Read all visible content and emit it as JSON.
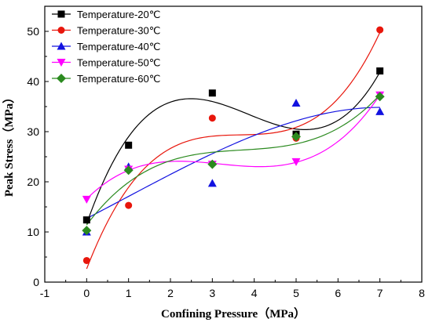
{
  "chart_data": {
    "type": "scatter",
    "title": "",
    "xlabel": "Confining Pressure（MPa）",
    "ylabel": "Peak Stress（MPa）",
    "xlim": [
      -1,
      8
    ],
    "ylim": [
      0,
      55
    ],
    "xticks": [
      -1,
      0,
      1,
      2,
      3,
      4,
      5,
      6,
      7,
      8
    ],
    "yticks": [
      0,
      10,
      20,
      30,
      40,
      50
    ],
    "grid": false,
    "legend_position": "top-left",
    "trendline": "polynomial fit (cubic)",
    "series": [
      {
        "name": "Temperature-20℃",
        "color": "#000000",
        "marker": "square",
        "x": [
          0,
          1,
          3,
          5,
          7
        ],
        "y": [
          12.4,
          27.3,
          37.7,
          29.5,
          42.1
        ]
      },
      {
        "name": "Temperature-30℃",
        "color": "#e8160c",
        "marker": "circle",
        "x": [
          0,
          1,
          3,
          5,
          7
        ],
        "y": [
          4.3,
          15.3,
          32.7,
          28.7,
          50.3
        ]
      },
      {
        "name": "Temperature-40℃",
        "color": "#1212e0",
        "marker": "triangle-up",
        "x": [
          0,
          1,
          3,
          5,
          7
        ],
        "y": [
          10.0,
          23.0,
          19.7,
          35.7,
          34.0
        ]
      },
      {
        "name": "Temperature-50℃",
        "color": "#ff00ff",
        "marker": "triangle-down",
        "x": [
          0,
          1,
          3,
          5,
          7
        ],
        "y": [
          16.5,
          22.5,
          23.5,
          24.0,
          37.3
        ]
      },
      {
        "name": "Temperature-60℃",
        "color": "#2b8a1f",
        "marker": "diamond",
        "x": [
          0,
          1,
          3,
          5,
          7
        ],
        "y": [
          10.3,
          22.3,
          23.5,
          29.0,
          37.0
        ]
      }
    ]
  }
}
